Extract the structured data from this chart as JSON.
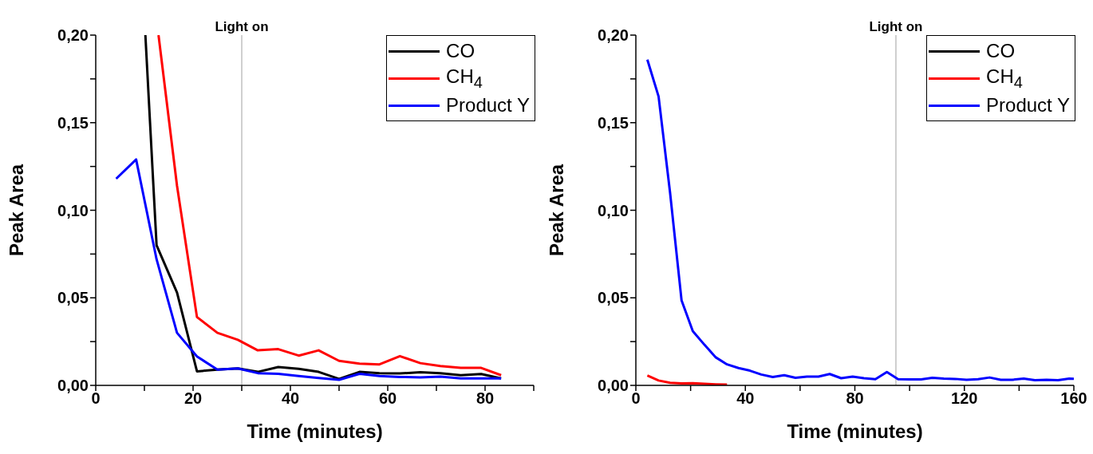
{
  "chart_data": [
    {
      "type": "line",
      "xlabel": "Time (minutes)",
      "ylabel": "Peak Area",
      "legend": "top right",
      "xlim": [
        0,
        90
      ],
      "xticks": [
        0,
        {
          "value": 10,
          "label": null
        },
        20,
        {
          "value": 30,
          "label": null
        },
        40,
        {
          "value": 50,
          "label": null
        },
        60,
        {
          "value": 70,
          "label": null
        },
        80,
        {
          "value": 90,
          "label": null
        }
      ],
      "ylim": [
        0,
        0.2
      ],
      "yticks": [
        {
          "value": 0,
          "label": "0,00"
        },
        {
          "value": 0.025,
          "label": null
        },
        {
          "value": 0.05,
          "label": "0,05"
        },
        {
          "value": 0.075,
          "label": null
        },
        {
          "value": 0.1,
          "label": "0,10"
        },
        {
          "value": 0.125,
          "label": null
        },
        {
          "value": 0.15,
          "label": "0,15"
        },
        {
          "value": 0.175,
          "label": null
        },
        {
          "value": 0.2,
          "label": "0,20"
        }
      ],
      "ref_lines": [
        {
          "axis": "x",
          "value": 30,
          "label": "Light on",
          "color": "#a0a0a0"
        }
      ],
      "series": [
        {
          "name": "CO",
          "color": "#000000",
          "x": [
            10.2,
            12.5,
            16.7,
            20.8,
            25,
            29.2,
            33.3,
            37.5,
            41.7,
            45.8,
            50,
            54.2,
            58.3,
            62.5,
            66.7,
            70.8,
            75,
            79.2,
            83.3
          ],
          "values": [
            0.2,
            0.08,
            0.053,
            0.008,
            0.009,
            0.0097,
            0.0077,
            0.0105,
            0.0095,
            0.0077,
            0.0037,
            0.0077,
            0.007,
            0.0068,
            0.0075,
            0.007,
            0.0058,
            0.0065,
            0.004
          ]
        },
        {
          "name": "CH$_{4}$",
          "color": "#ff0000",
          "x": [
            12.9,
            16.7,
            20.8,
            25,
            29.2,
            33.3,
            37.5,
            41.7,
            45.8,
            50,
            54.2,
            58.3,
            62.5,
            66.7,
            70.8,
            75,
            79.2,
            83.3
          ],
          "values": [
            0.2,
            0.114,
            0.039,
            0.03,
            0.026,
            0.02,
            0.0207,
            0.017,
            0.02,
            0.014,
            0.0124,
            0.012,
            0.0167,
            0.0127,
            0.011,
            0.01,
            0.01,
            0.0058
          ]
        },
        {
          "name": "Product Y",
          "color": "#0000ff",
          "x": [
            4.2,
            8.3,
            12.5,
            16.7,
            20.8,
            25,
            29.2,
            33.3,
            37.5,
            41.7,
            45.8,
            50,
            54.2,
            58.3,
            62.5,
            66.7,
            70.8,
            75,
            79.2,
            83.3
          ],
          "values": [
            0.118,
            0.129,
            0.072,
            0.03,
            0.0165,
            0.009,
            0.0097,
            0.007,
            0.0066,
            0.0054,
            0.0042,
            0.0032,
            0.0066,
            0.0054,
            0.0048,
            0.0046,
            0.005,
            0.004,
            0.004,
            0.004
          ]
        }
      ]
    },
    {
      "type": "line",
      "xlabel": "Time (minutes)",
      "ylabel": "Peak Area",
      "legend": "top right",
      "xlim": [
        0,
        160
      ],
      "xticks": [
        0,
        {
          "value": 20,
          "label": null
        },
        40,
        {
          "value": 60,
          "label": null
        },
        80,
        {
          "value": 100,
          "label": null
        },
        120,
        {
          "value": 140,
          "label": null
        },
        160
      ],
      "ylim": [
        0,
        0.2
      ],
      "yticks": [
        {
          "value": 0,
          "label": "0,00"
        },
        {
          "value": 0.025,
          "label": null
        },
        {
          "value": 0.05,
          "label": "0,05"
        },
        {
          "value": 0.075,
          "label": null
        },
        {
          "value": 0.1,
          "label": "0,10"
        },
        {
          "value": 0.125,
          "label": null
        },
        {
          "value": 0.15,
          "label": "0,15"
        },
        {
          "value": 0.175,
          "label": null
        },
        {
          "value": 0.2,
          "label": "0,20"
        }
      ],
      "ref_lines": [
        {
          "axis": "x",
          "value": 95,
          "label": "Light on",
          "color": "#a0a0a0"
        }
      ],
      "series": [
        {
          "name": "CO",
          "color": "#000000"
        },
        {
          "name": "CH$_{4}$",
          "color": "#ff0000",
          "x": [
            4.2,
            8.3,
            12.5,
            16.7,
            20.8,
            25,
            29.2,
            33.3
          ],
          "values": [
            0.0056,
            0.0028,
            0.0015,
            0.0011,
            0.0013,
            0.0009,
            0.0006,
            0.0004
          ]
        },
        {
          "name": "Product Y",
          "color": "#0000ff",
          "x": [
            4.2,
            8.3,
            12.5,
            16.7,
            20.8,
            25,
            29.2,
            33.3,
            37.5,
            41.7,
            45.8,
            50,
            54.2,
            58.3,
            62.5,
            66.7,
            70.8,
            75,
            79.2,
            83.3,
            87.5,
            91.7,
            95.8,
            100,
            104.2,
            108.3,
            112.5,
            116.7,
            120.8,
            125,
            129.2,
            133.3,
            137.5,
            141.7,
            145.8,
            150,
            154.2,
            158.3,
            160
          ],
          "values": [
            0.186,
            0.165,
            0.11,
            0.0485,
            0.031,
            0.0233,
            0.016,
            0.012,
            0.0099,
            0.0084,
            0.0062,
            0.0048,
            0.0058,
            0.0043,
            0.005,
            0.005,
            0.0065,
            0.0041,
            0.005,
            0.0041,
            0.0035,
            0.0076,
            0.0035,
            0.0034,
            0.0034,
            0.0043,
            0.0039,
            0.0037,
            0.0032,
            0.0035,
            0.0045,
            0.0032,
            0.0032,
            0.0039,
            0.003,
            0.0032,
            0.003,
            0.0039,
            0.0038
          ]
        }
      ]
    }
  ]
}
